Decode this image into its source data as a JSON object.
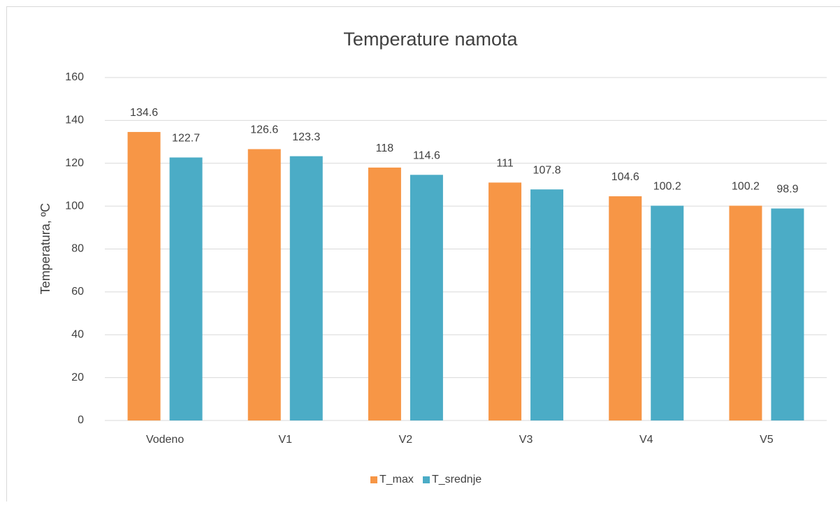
{
  "chart_data": {
    "type": "bar",
    "title": "Temperature namota",
    "y_label": "Temperatura, ºC",
    "categories": [
      "Vodeno",
      "V1",
      "V2",
      "V3",
      "V4",
      "V5"
    ],
    "series": [
      {
        "name": "T_max",
        "color": "#f79646",
        "values": [
          134.6,
          126.6,
          118,
          111,
          104.6,
          100.2
        ]
      },
      {
        "name": "T_srednje",
        "color": "#4bacc6",
        "values": [
          122.7,
          123.3,
          114.6,
          107.8,
          100.2,
          98.9
        ]
      }
    ],
    "ylim": [
      0,
      160
    ],
    "yticks": [
      0,
      20,
      40,
      60,
      80,
      100,
      120,
      140,
      160
    ],
    "grid": true,
    "legend": "bottom"
  }
}
